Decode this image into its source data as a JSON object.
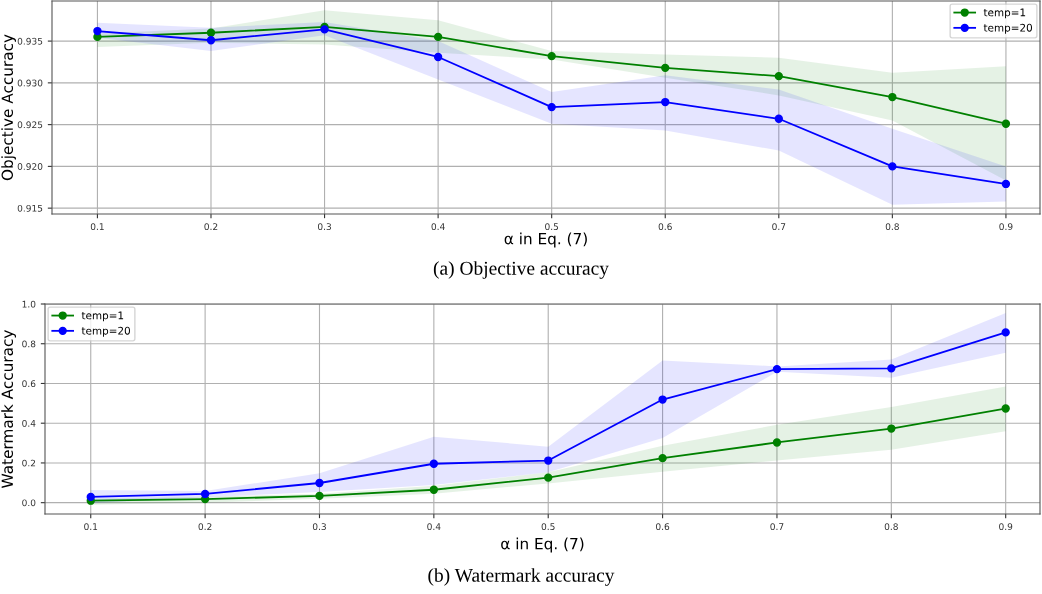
{
  "chart_data": [
    {
      "type": "line",
      "xlabel": "α in Eq. (7)",
      "ylabel": "Objective Accuracy",
      "annotations": [
        "(a) Objective accuracy"
      ],
      "x": [
        0.1,
        0.2,
        0.3,
        0.4,
        0.5,
        0.6,
        0.7,
        0.8,
        0.9
      ],
      "series": [
        {
          "name": "temp=1",
          "color": "#008000",
          "values": [
            0.9355,
            0.936,
            0.9367,
            0.9355,
            0.9332,
            0.9318,
            0.9308,
            0.9283,
            0.9251
          ],
          "lower": [
            0.9343,
            0.9348,
            0.9346,
            0.9336,
            0.9328,
            0.9306,
            0.9285,
            0.9255,
            0.9183
          ],
          "upper": [
            0.9359,
            0.9365,
            0.9387,
            0.9375,
            0.9338,
            0.9334,
            0.933,
            0.9312,
            0.932
          ]
        },
        {
          "name": "temp=20",
          "color": "#0000ff",
          "values": [
            0.9362,
            0.9351,
            0.9364,
            0.9331,
            0.9271,
            0.9277,
            0.9257,
            0.92,
            0.9179
          ],
          "lower": [
            0.9354,
            0.9338,
            0.9357,
            0.9304,
            0.9251,
            0.9243,
            0.9219,
            0.9154,
            0.9158
          ],
          "upper": [
            0.9372,
            0.9366,
            0.9373,
            0.935,
            0.9289,
            0.9309,
            0.9292,
            0.9245,
            0.92
          ]
        }
      ],
      "xlim": [
        0.06,
        0.93
      ],
      "ylim": [
        0.9143,
        0.9398
      ],
      "xticks": [
        0.1,
        0.2,
        0.3,
        0.4,
        0.5,
        0.6,
        0.7,
        0.8,
        0.9
      ],
      "yticks": [
        0.915,
        {
          "value": 0.92,
          "label": "0.920"
        },
        0.925,
        {
          "value": 0.93,
          "label": "0.930"
        },
        0.935
      ],
      "grid": true,
      "legend": "top right",
      "marker": "circle",
      "line_style": "solid"
    },
    {
      "type": "line",
      "xlabel": "α in Eq. (7)",
      "ylabel": "Watermark Accuracy",
      "annotations": [
        "(b) Watermark accuracy"
      ],
      "x": [
        0.1,
        0.2,
        0.3,
        0.4,
        0.5,
        0.6,
        0.7,
        0.8,
        0.9
      ],
      "series": [
        {
          "name": "temp=1",
          "color": "#008000",
          "values": [
            0.01,
            0.018,
            0.034,
            0.065,
            0.126,
            0.224,
            0.303,
            0.373,
            0.474
          ],
          "lower": [
            -0.01,
            0.0,
            0.02,
            0.045,
            0.097,
            0.156,
            0.212,
            0.266,
            0.36
          ],
          "upper": [
            0.02,
            0.03,
            0.045,
            0.085,
            0.153,
            0.287,
            0.392,
            0.481,
            0.585
          ]
        },
        {
          "name": "temp=20",
          "color": "#0000ff",
          "values": [
            0.029,
            0.044,
            0.099,
            0.196,
            0.212,
            0.519,
            0.672,
            0.676,
            0.857
          ],
          "lower": [
            -0.003,
            0.027,
            0.054,
            0.089,
            0.153,
            0.326,
            0.659,
            0.629,
            0.755
          ],
          "upper": [
            0.064,
            0.059,
            0.148,
            0.332,
            0.282,
            0.716,
            0.686,
            0.721,
            0.955
          ]
        }
      ],
      "xlim": [
        0.06,
        0.93
      ],
      "ylim": [
        -0.057,
        1.0
      ],
      "xticks": [
        0.1,
        0.2,
        0.3,
        0.4,
        0.5,
        0.6,
        0.7,
        0.8,
        0.9
      ],
      "yticks": [
        {
          "value": 0,
          "label": "0.0"
        },
        0.2,
        0.4,
        0.6,
        0.8,
        {
          "value": 1,
          "label": "1.0"
        }
      ],
      "grid": true,
      "legend": "top left",
      "marker": "circle",
      "line_style": "solid"
    }
  ]
}
